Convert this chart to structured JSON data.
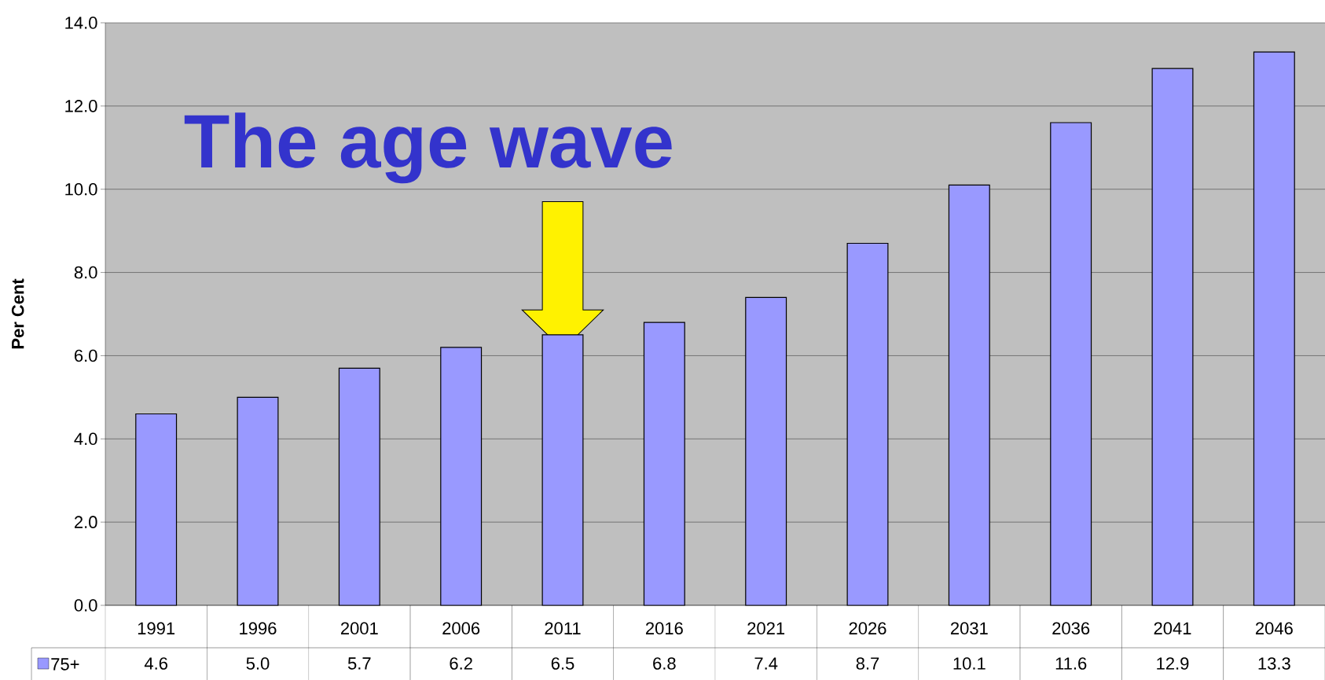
{
  "chart_data": {
    "type": "bar",
    "title": "The age wave",
    "ylabel": "Per Cent",
    "categories": [
      "1991",
      "1996",
      "2001",
      "2006",
      "2011",
      "2016",
      "2021",
      "2026",
      "2031",
      "2036",
      "2041",
      "2046"
    ],
    "series": [
      {
        "name": "75+",
        "color": "#9999ff",
        "values": [
          4.6,
          5.0,
          5.7,
          6.2,
          6.5,
          6.8,
          7.4,
          8.7,
          10.1,
          11.6,
          12.9,
          13.3
        ],
        "value_labels": [
          "4.6",
          "5.0",
          "5.7",
          "6.2",
          "6.5",
          "6.8",
          "7.4",
          "8.7",
          "10.1",
          "11.6",
          "12.9",
          "13.3"
        ]
      }
    ],
    "ylim": [
      0,
      14
    ],
    "yticks": [
      {
        "value": 0,
        "label": "0.0"
      },
      {
        "value": 2,
        "label": "2.0"
      },
      {
        "value": 4,
        "label": "4.0"
      },
      {
        "value": 6,
        "label": "6.0"
      },
      {
        "value": 8,
        "label": "8.0"
      },
      {
        "value": 10,
        "label": "10.0"
      },
      {
        "value": 12,
        "label": "12.0"
      },
      {
        "value": 14,
        "label": "14.0"
      }
    ],
    "grid": "y",
    "data_labels": true,
    "legend": "bottom left"
  }
}
